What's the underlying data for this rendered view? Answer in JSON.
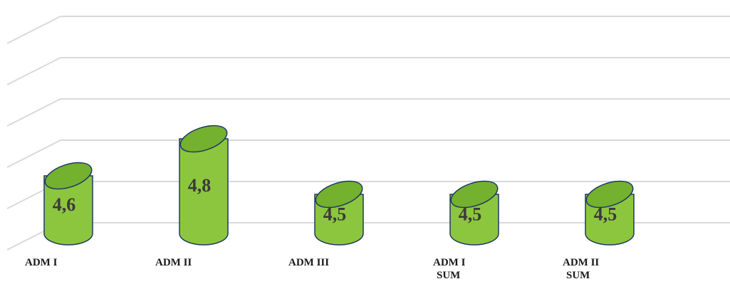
{
  "chart_data": {
    "type": "bar",
    "style": "3d-cylinder",
    "categories": [
      [
        "ADM I"
      ],
      [
        "ADM II"
      ],
      [
        "ADM III"
      ],
      [
        "ADM I",
        "SUM"
      ],
      [
        "ADM II",
        "SUM"
      ]
    ],
    "values": [
      4.6,
      4.8,
      4.5,
      4.5,
      4.5
    ],
    "value_labels": [
      "4,6",
      "4,8",
      "4,5",
      "4,5",
      "4,5"
    ],
    "title": "",
    "xlabel": "",
    "ylabel": "",
    "ylim": [
      4.0,
      5.0
    ],
    "grid": true,
    "legend": "none",
    "bar_color": "#8cc63f",
    "bar_top_color": "#74b12f",
    "bar_outline_color": "#1f3864",
    "grid_color": "#d9d9d9"
  }
}
